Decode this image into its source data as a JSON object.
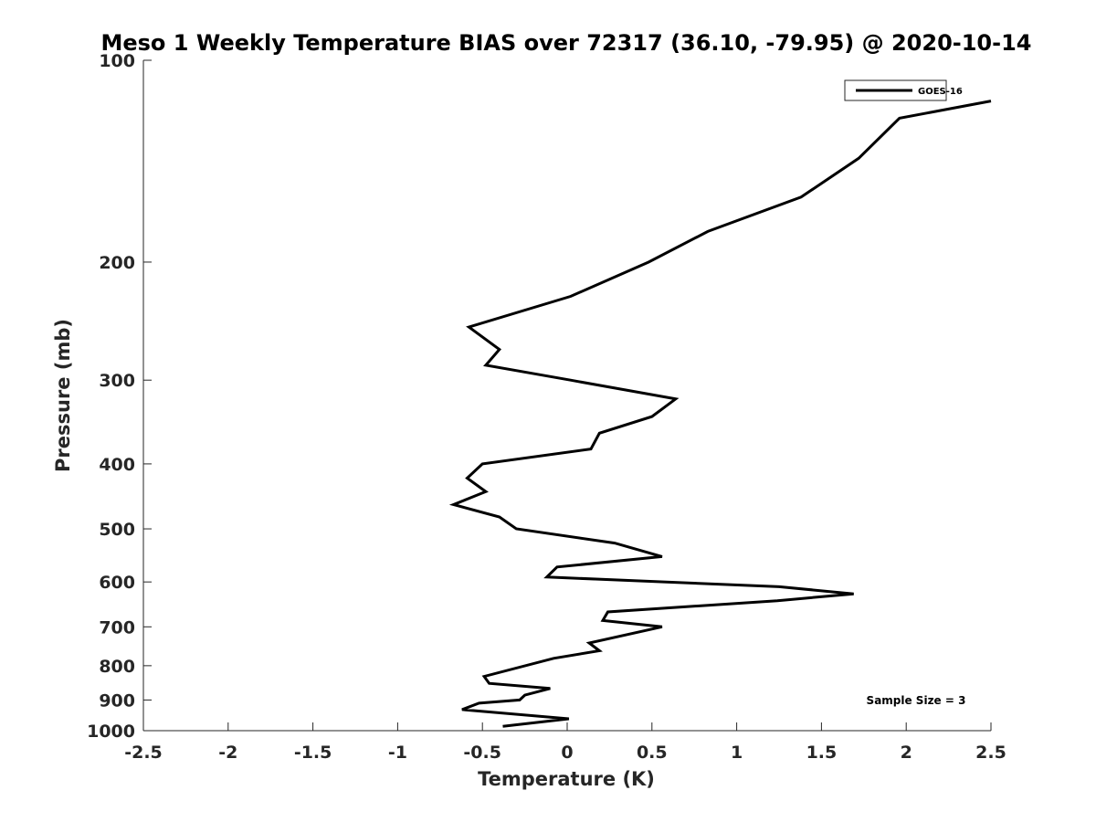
{
  "chart_data": {
    "type": "line",
    "title": "Meso 1 Weekly Temperature BIAS over 72317 (36.10, -79.95) @ 2020-10-14",
    "xlabel": "Temperature (K)",
    "ylabel": "Pressure (mb)",
    "xlim": [
      -2.5,
      2.5
    ],
    "ylim": [
      100,
      1000
    ],
    "y_scale": "log",
    "y_reversed": true,
    "grid": false,
    "legend_position": "top-right",
    "x_ticks": [
      -2.5,
      -2,
      -1.5,
      -1,
      -0.5,
      0,
      0.5,
      1,
      1.5,
      2,
      2.5
    ],
    "x_tick_labels": [
      "-2.5",
      "-2",
      "-1.5",
      "-1",
      "-0.5",
      "0",
      "0.5",
      "1",
      "1.5",
      "2",
      "2.5"
    ],
    "y_ticks": [
      100,
      200,
      300,
      400,
      500,
      600,
      700,
      800,
      900,
      1000
    ],
    "y_tick_labels": [
      "100",
      "200",
      "300",
      "400",
      "500",
      "600",
      "700",
      "800",
      "900",
      "1000"
    ],
    "annotation": "Sample Size = 3",
    "series": [
      {
        "name": "GOES-16",
        "color": "#000000",
        "points": [
          {
            "x": 2.5,
            "p": 115
          },
          {
            "x": 1.96,
            "p": 122
          },
          {
            "x": 1.72,
            "p": 140
          },
          {
            "x": 1.38,
            "p": 160
          },
          {
            "x": 0.83,
            "p": 180
          },
          {
            "x": 0.48,
            "p": 200
          },
          {
            "x": 0.02,
            "p": 225
          },
          {
            "x": -0.58,
            "p": 250
          },
          {
            "x": -0.4,
            "p": 270
          },
          {
            "x": -0.48,
            "p": 285
          },
          {
            "x": 0.02,
            "p": 300
          },
          {
            "x": 0.64,
            "p": 320
          },
          {
            "x": 0.5,
            "p": 340
          },
          {
            "x": 0.19,
            "p": 360
          },
          {
            "x": 0.14,
            "p": 380
          },
          {
            "x": -0.5,
            "p": 400
          },
          {
            "x": -0.59,
            "p": 420
          },
          {
            "x": -0.48,
            "p": 440
          },
          {
            "x": -0.67,
            "p": 460
          },
          {
            "x": -0.4,
            "p": 480
          },
          {
            "x": -0.3,
            "p": 500
          },
          {
            "x": 0.28,
            "p": 525
          },
          {
            "x": 0.56,
            "p": 550
          },
          {
            "x": -0.06,
            "p": 570
          },
          {
            "x": -0.12,
            "p": 590
          },
          {
            "x": 1.25,
            "p": 610
          },
          {
            "x": 1.69,
            "p": 625
          },
          {
            "x": 1.24,
            "p": 640
          },
          {
            "x": 0.24,
            "p": 665
          },
          {
            "x": 0.21,
            "p": 685
          },
          {
            "x": 0.56,
            "p": 700
          },
          {
            "x": 0.13,
            "p": 740
          },
          {
            "x": 0.19,
            "p": 760
          },
          {
            "x": -0.08,
            "p": 780
          },
          {
            "x": -0.49,
            "p": 830
          },
          {
            "x": -0.46,
            "p": 850
          },
          {
            "x": -0.1,
            "p": 865
          },
          {
            "x": -0.25,
            "p": 885
          },
          {
            "x": -0.28,
            "p": 900
          },
          {
            "x": -0.52,
            "p": 910
          },
          {
            "x": -0.62,
            "p": 930
          },
          {
            "x": 0.01,
            "p": 960
          },
          {
            "x": -0.38,
            "p": 985
          }
        ]
      }
    ]
  }
}
